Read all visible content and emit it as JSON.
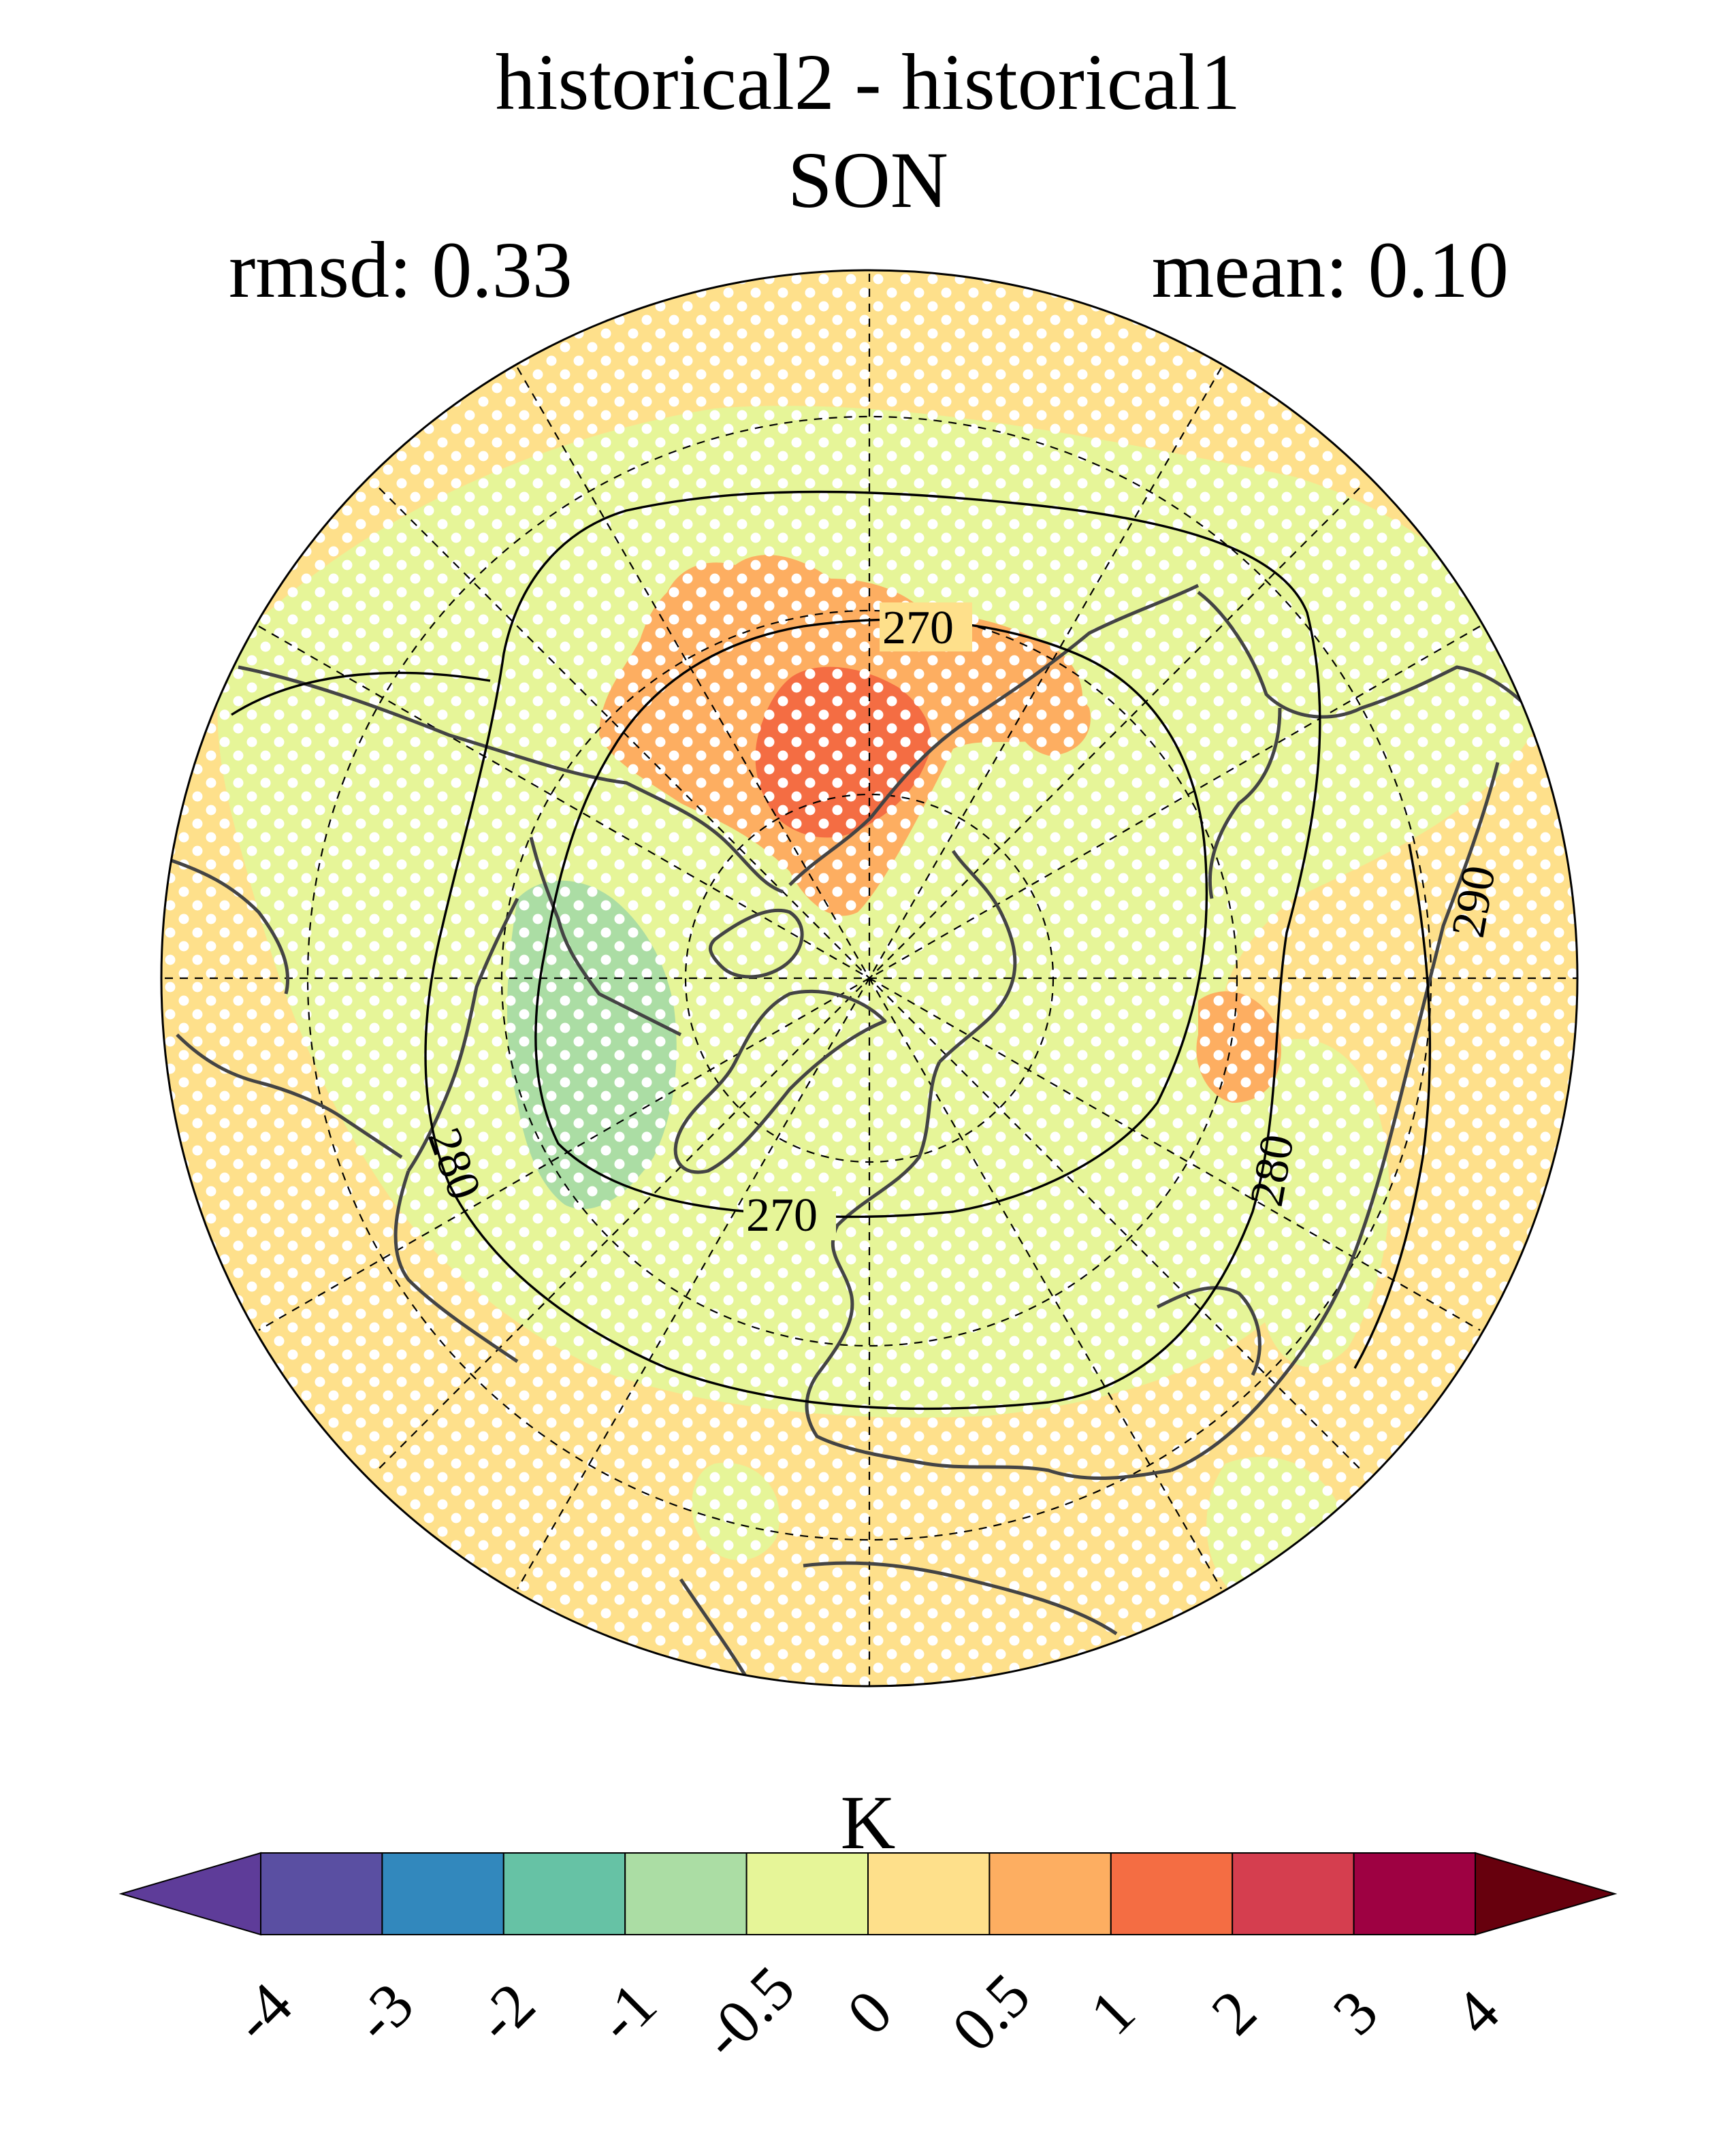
{
  "title": "historical2 - historical1",
  "season": "SON",
  "rmsd_label": "rmsd: 0.33",
  "mean_label": "mean: 0.10",
  "colorbar": {
    "unit": "K",
    "levels": [
      "-4",
      "-3",
      "-2",
      "-1",
      "-0.5",
      "0",
      "0.5",
      "1",
      "2",
      "3",
      "4"
    ],
    "colors": [
      "#5e3c99",
      "#5a4fa2",
      "#3288bd",
      "#66c2a5",
      "#abdda4",
      "#e6f598",
      "#fee08b",
      "#fdae61",
      "#f46d43",
      "#d53e4f",
      "#9e0142",
      "#67000d"
    ]
  },
  "contour_labels": [
    "270",
    "270",
    "280",
    "280",
    "290"
  ],
  "map": {
    "projection": "north polar stereographic",
    "background_color": "#fee08b",
    "stippling": true
  }
}
